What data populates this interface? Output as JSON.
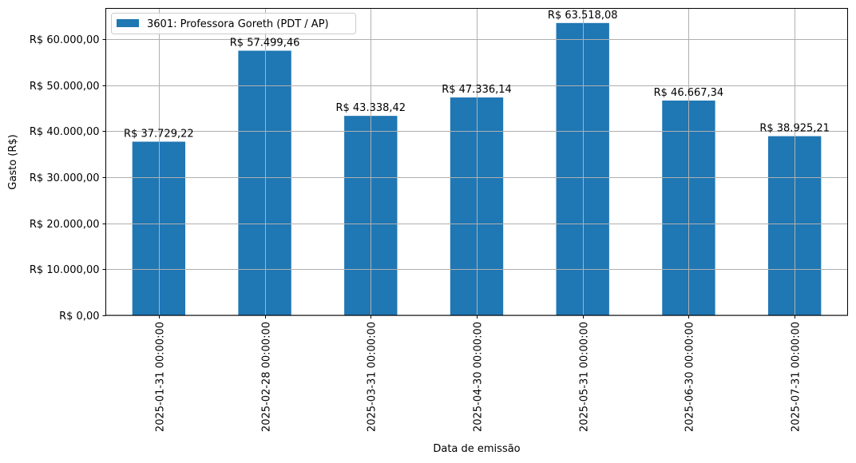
{
  "chart_data": {
    "type": "bar",
    "title": "",
    "xlabel": "Data de emissão",
    "ylabel": "Gasto (R$)",
    "categories": [
      "2025-01-31 00:00:00",
      "2025-02-28 00:00:00",
      "2025-03-31 00:00:00",
      "2025-04-30 00:00:00",
      "2025-05-31 00:00:00",
      "2025-06-30 00:00:00",
      "2025-07-31 00:00:00"
    ],
    "series": [
      {
        "name": "3601: Professora Goreth (PDT / AP)",
        "color": "#1f77b4",
        "values": [
          37729.22,
          57499.46,
          43338.42,
          47336.14,
          63518.08,
          46667.34,
          38925.21
        ],
        "labels": [
          "R$ 37.729,22",
          "R$ 57.499,46",
          "R$ 43.338,42",
          "R$ 47.336,14",
          "R$ 63.518,08",
          "R$ 46.667,34",
          "R$ 38.925,21"
        ]
      }
    ],
    "ylim": [
      0,
      66694
    ],
    "yticks": [
      0,
      10000,
      20000,
      30000,
      40000,
      50000,
      60000
    ],
    "ytick_labels": [
      "R$ 0,00",
      "R$ 10.000,00",
      "R$ 20.000,00",
      "R$ 30.000,00",
      "R$ 40.000,00",
      "R$ 50.000,00",
      "R$ 60.000,00"
    ],
    "grid": true,
    "legend_position": "upper left",
    "xtick_rotation": 90
  }
}
